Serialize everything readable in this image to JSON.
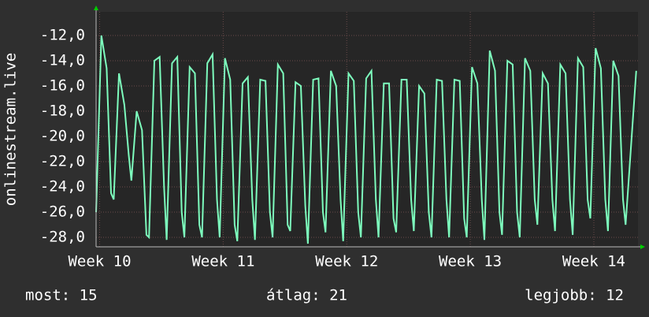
{
  "chart_data": {
    "type": "line",
    "y_label": "onlinestream.live",
    "x": [
      0,
      0.3,
      0.6,
      0.85,
      1,
      1.3,
      1.6,
      1.85,
      2,
      2.3,
      2.6,
      2.85,
      3,
      3.3,
      3.6,
      3.85,
      4,
      4.3,
      4.6,
      4.85,
      5,
      5.3,
      5.6,
      5.85,
      6,
      6.3,
      6.6,
      6.85,
      7,
      7.3,
      7.6,
      7.85,
      8,
      8.3,
      8.6,
      8.85,
      9,
      9.3,
      9.6,
      9.85,
      10,
      10.3,
      10.6,
      10.85,
      11,
      11.3,
      11.6,
      11.85,
      12,
      12.3,
      12.6,
      12.85,
      13,
      13.3,
      13.6,
      13.85,
      14,
      14.3,
      14.6,
      14.85,
      15,
      15.3,
      15.6,
      15.85,
      16,
      16.3,
      16.6,
      16.85,
      17,
      17.3,
      17.6,
      17.85,
      18,
      18.3,
      18.6,
      18.85,
      19,
      19.3,
      19.6,
      19.85,
      20,
      20.3,
      20.6,
      20.85,
      21,
      21.3,
      21.6,
      21.85,
      22,
      22.3,
      22.6,
      22.85,
      23,
      23.3,
      23.6,
      23.85,
      24,
      24.3,
      24.6,
      24.85,
      25,
      25.3,
      25.6,
      25.85,
      26,
      26.3,
      26.6,
      26.85,
      27,
      27.3,
      27.6,
      27.85,
      28,
      28.3,
      28.6,
      28.85,
      29,
      29.3,
      29.6,
      29.85,
      30,
      30.6
    ],
    "series": [
      {
        "name": "onlinestream.live",
        "color": "#7dfcbd",
        "values": [
          -26,
          -12,
          -14.6,
          -24.5,
          -25,
          -15,
          -17.5,
          -21.5,
          -23.5,
          -18,
          -19.5,
          -27.8,
          -28,
          -14,
          -13.7,
          -24,
          -28.2,
          -14.2,
          -13.7,
          -26,
          -28,
          -14.5,
          -15,
          -27,
          -28,
          -14.2,
          -13.5,
          -25,
          -28,
          -13.8,
          -15.5,
          -27,
          -28.3,
          -15.8,
          -15.3,
          -25,
          -28.2,
          -15.5,
          -15.6,
          -26,
          -28,
          -14.3,
          -15,
          -27,
          -27.5,
          -15.7,
          -16,
          -25.5,
          -28.5,
          -15.5,
          -15.4,
          -26,
          -27.6,
          -14.8,
          -16,
          -25,
          -28.3,
          -15,
          -15.6,
          -26,
          -28,
          -15.4,
          -14.8,
          -25,
          -28,
          -15.8,
          -15.8,
          -26.5,
          -27.6,
          -15.5,
          -15.5,
          -25,
          -27.5,
          -16,
          -16.6,
          -26,
          -28,
          -15.5,
          -15.6,
          -25,
          -28,
          -15.5,
          -15.6,
          -26.5,
          -28,
          -14.5,
          -15.8,
          -25,
          -28.2,
          -13.2,
          -14.8,
          -26,
          -27.8,
          -14,
          -14.3,
          -26,
          -28,
          -13.8,
          -14.8,
          -25,
          -27,
          -15,
          -15.8,
          -25,
          -27.5,
          -14.3,
          -15,
          -25,
          -27.8,
          -13.8,
          -14.5,
          -25,
          -26.5,
          -13,
          -14.6,
          -25,
          -27.5,
          -14,
          -15.2,
          -25,
          -27,
          -14.8
        ]
      }
    ],
    "xlim": [
      0,
      30.7
    ],
    "xticks": [
      {
        "value": 0.2,
        "label": "Week 10"
      },
      {
        "value": 7.2,
        "label": "Week 11"
      },
      {
        "value": 14.2,
        "label": "Week 12"
      },
      {
        "value": 21.2,
        "label": "Week 13"
      },
      {
        "value": 28.2,
        "label": "Week 14"
      }
    ],
    "ylim": [
      -28.75,
      -10.125
    ],
    "yticks": [
      {
        "value": -28,
        "label": "-28,0"
      },
      {
        "value": -26,
        "label": "-26,0"
      },
      {
        "value": -24,
        "label": "-24,0"
      },
      {
        "value": -22,
        "label": "-22,0"
      },
      {
        "value": -20,
        "label": "-20,0"
      },
      {
        "value": -18,
        "label": "-18,0"
      },
      {
        "value": -16,
        "label": "-16,0"
      },
      {
        "value": -14,
        "label": "-14,0"
      },
      {
        "value": -12,
        "label": "-12,0"
      }
    ],
    "grid": true,
    "stats": [
      "most: 15",
      "átlag: 21",
      "legjobb: 12"
    ]
  }
}
